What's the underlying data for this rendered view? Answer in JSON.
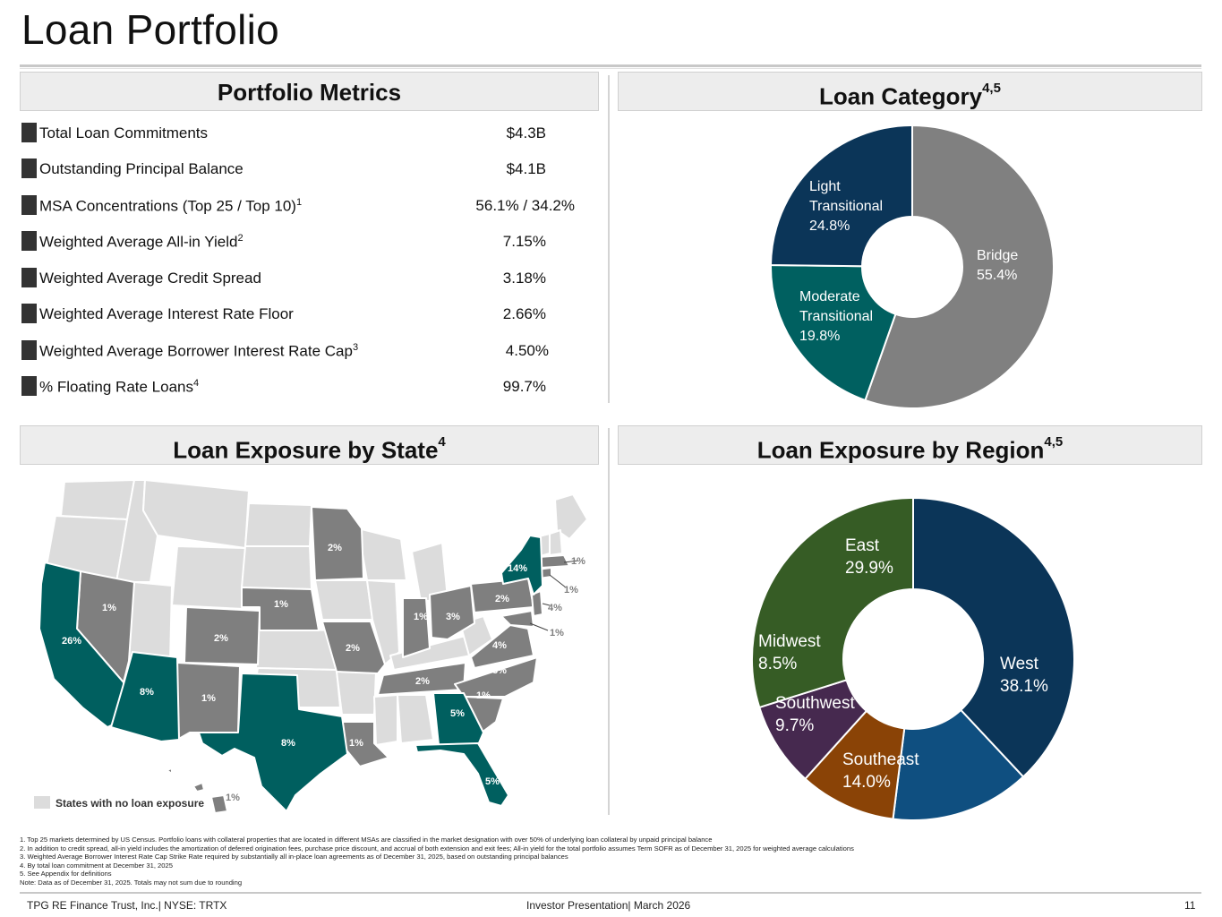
{
  "page": {
    "title": "Loan Portfolio",
    "footer_left": "TPG RE Finance Trust, Inc.| NYSE: TRTX",
    "footer_center": "Investor Presentation| March 2026",
    "footer_page": "11"
  },
  "panels": {
    "metrics_title": "Portfolio Metrics",
    "category_title": "Loan Category",
    "category_sup": "4,5",
    "state_title": "Loan Exposure by State",
    "state_sup": "4",
    "region_title": "Loan Exposure by Region",
    "region_sup": "4,5"
  },
  "metrics": [
    {
      "label": "Total Loan Commitments",
      "sup": "",
      "value": "$4.3B"
    },
    {
      "label": "Outstanding Principal Balance",
      "sup": "",
      "value": "$4.1B"
    },
    {
      "label": "MSA Concentrations (Top 25 / Top 10)",
      "sup": "1",
      "value": "56.1% / 34.2%"
    },
    {
      "label": "Weighted Average All-in Yield",
      "sup": "2",
      "value": "7.15%"
    },
    {
      "label": "Weighted Average Credit Spread",
      "sup": "",
      "value": "3.18%"
    },
    {
      "label": "Weighted Average Interest Rate Floor",
      "sup": "",
      "value": "2.66%"
    },
    {
      "label": "Weighted Average Borrower Interest Rate Cap",
      "sup": "3",
      "value": "4.50%"
    },
    {
      "label": "% Floating Rate Loans",
      "sup": "4",
      "value": "99.7%"
    }
  ],
  "map": {
    "legend": "States with no loan exposure",
    "labels": {
      "ca": "26%",
      "nv": "1%",
      "az": "8%",
      "nm": "1%",
      "co": "2%",
      "tx": "8%",
      "ne": "1%",
      "mn": "2%",
      "mo": "2%",
      "la": "1%",
      "in": "1%",
      "oh": "3%",
      "pa": "2%",
      "ny": "14%",
      "va": "4%",
      "nc": "3%",
      "tn": "2%",
      "sc": "1%",
      "ga": "5%",
      "fl": "5%",
      "hi": "1%",
      "ma": "1%",
      "ct": "1%",
      "nj": "4%",
      "md": "1%"
    },
    "colors": {
      "teal": "#005f5f",
      "gray": "#7f7f7f",
      "light": "#dcdcdc"
    }
  },
  "chart_data": [
    {
      "type": "pie",
      "title": "Loan Category",
      "categories": [
        "Bridge",
        "Moderate Transitional",
        "Light Transitional"
      ],
      "values": [
        55.4,
        19.8,
        24.8
      ],
      "labels": [
        [
          "Bridge",
          "55.4%"
        ],
        [
          "Moderate",
          "Transitional",
          "19.8%"
        ],
        [
          "Light",
          "Transitional",
          "24.8%"
        ]
      ],
      "colors": [
        "#808080",
        "#006060",
        "#0b3558"
      ]
    },
    {
      "type": "pie",
      "title": "Loan Exposure by Region",
      "categories": [
        "West",
        "Southeast",
        "Southwest",
        "Midwest",
        "East"
      ],
      "values": [
        38.1,
        14.0,
        9.7,
        8.5,
        29.9
      ],
      "labels": [
        [
          "West",
          "38.1%"
        ],
        [
          "Southeast",
          "14.0%"
        ],
        [
          "Southwest",
          "9.7%"
        ],
        [
          "Midwest",
          "8.5%"
        ],
        [
          "East",
          "29.9%"
        ]
      ],
      "colors": [
        "#0b3558",
        "#0f4f80",
        "#8a4306",
        "#46294f",
        "#365c25"
      ]
    }
  ],
  "footnotes": [
    "1. Top 25 markets determined by US Census. Portfolio loans with collateral properties that are located in different MSAs are classified in the market designation with over 50% of underlying loan collateral by unpaid principal balance",
    "2. In addition to credit spread, all-in yield includes the amortization of deferred origination fees, purchase price discount, and accrual of both extension and exit fees; All-in yield for the total portfolio assumes Term SOFR as of December 31, 2025 for weighted average calculations",
    "3. Weighted Average Borrower Interest Rate Cap Strike Rate required by substantially all in-place loan agreements as of December 31, 2025, based on outstanding principal balances",
    "4. By total loan commitment at December 31, 2025",
    "5. See Appendix for definitions",
    "Note: Data as of December 31, 2025. Totals may not sum due to rounding"
  ]
}
